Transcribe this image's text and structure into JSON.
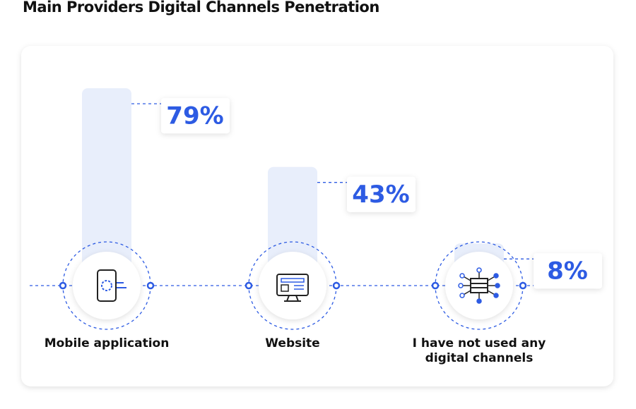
{
  "chart_data": {
    "type": "bar",
    "title": "Main Providers Digital Channels Penetration",
    "categories": [
      "Mobile application",
      "Website",
      "I have not used any digital channels"
    ],
    "values": [
      79,
      43,
      8
    ],
    "value_labels": [
      "79%",
      "43%",
      "8%"
    ],
    "color": "#e8eefb",
    "label_color": "#2d5be3"
  }
}
